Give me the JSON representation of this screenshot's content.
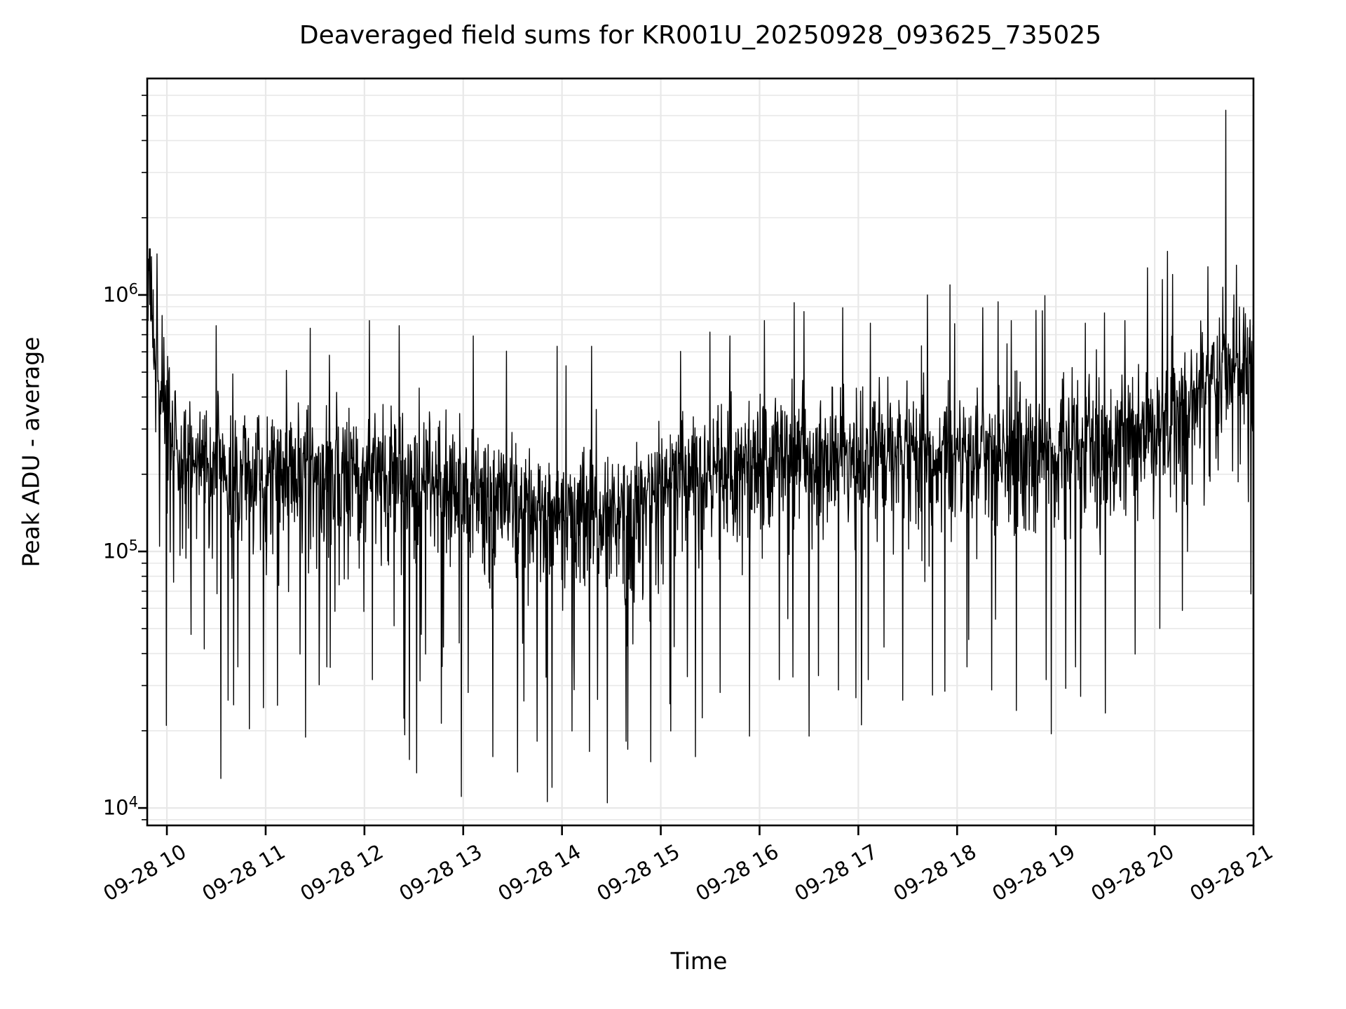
{
  "title": "Deaveraged field sums for KR001U_20250928_093625_735025",
  "chart_data": {
    "type": "line",
    "title": "Deaveraged field sums for KR001U_20250928_093625_735025",
    "xlabel": "Time",
    "ylabel": "Peak ADU - average",
    "legend": null,
    "grid": "both-major-and-minor",
    "background_color": "#ffffff",
    "grid_color": "#e8e8e8",
    "spine_color": "#000000",
    "x_axis": {
      "xlim_hours": [
        9.801,
        21.0
      ],
      "tick_hours": [
        10,
        11,
        12,
        13,
        14,
        15,
        16,
        17,
        18,
        19,
        20,
        21
      ],
      "tick_labels": [
        "09-28 10",
        "09-28 11",
        "09-28 12",
        "09-28 13",
        "09-28 14",
        "09-28 15",
        "09-28 16",
        "09-28 17",
        "09-28 18",
        "09-28 19",
        "09-28 20",
        "09-28 21"
      ],
      "tick_label_rotation_deg": 30
    },
    "y_axis": {
      "scale": "log",
      "ylim": [
        8550,
        6980000
      ],
      "tick_base": "10",
      "ticks": [
        {
          "value": 10000,
          "exponent": "4"
        },
        {
          "value": 100000,
          "exponent": "5"
        },
        {
          "value": 1000000,
          "exponent": "6"
        }
      ],
      "minor_tick_mantissas": [
        2,
        3,
        4,
        5,
        6,
        7,
        8,
        9
      ]
    },
    "series": [
      {
        "name": "deaveraged-field-sums",
        "color": "#000000",
        "line_width": 1.4,
        "n_points": 2600,
        "seed": 20250928,
        "noise_sigma_log10": 0.11,
        "down_spike_prob": 0.045,
        "down_spike_depth_log10": [
          0.22,
          1.2
        ],
        "mid_dip_prob": 0.16,
        "mid_dip_depth_log10": [
          0.1,
          0.32
        ],
        "up_spike_prob": 0.032,
        "up_spike_height_log10": [
          0.12,
          0.55
        ],
        "clamp_log10": [
          4.01,
          6.18
        ],
        "baseline_log10": [
          [
            9.8,
            5.92
          ],
          [
            9.84,
            6.0
          ],
          [
            9.88,
            5.78
          ],
          [
            9.95,
            5.62
          ],
          [
            10.05,
            5.46
          ],
          [
            10.2,
            5.38
          ],
          [
            10.5,
            5.34
          ],
          [
            11.0,
            5.33
          ],
          [
            12.0,
            5.33
          ],
          [
            12.8,
            5.3
          ],
          [
            13.3,
            5.24
          ],
          [
            13.8,
            5.21
          ],
          [
            14.3,
            5.19
          ],
          [
            14.7,
            5.2
          ],
          [
            15.0,
            5.28
          ],
          [
            15.5,
            5.33
          ],
          [
            16.0,
            5.38
          ],
          [
            16.5,
            5.41
          ],
          [
            17.5,
            5.42
          ],
          [
            18.5,
            5.42
          ],
          [
            19.2,
            5.43
          ],
          [
            19.8,
            5.46
          ],
          [
            20.1,
            5.52
          ],
          [
            20.35,
            5.62
          ],
          [
            20.6,
            5.7
          ],
          [
            20.8,
            5.74
          ],
          [
            21.0,
            5.76
          ]
        ],
        "peak_events_hour_log10": [
          [
            9.815,
            6.14
          ],
          [
            9.9,
            6.16
          ],
          [
            9.86,
            6.02
          ],
          [
            9.95,
            5.92
          ],
          [
            10.5,
            5.88
          ],
          [
            11.45,
            5.87
          ],
          [
            12.05,
            5.9
          ],
          [
            12.35,
            5.88
          ],
          [
            13.1,
            5.84
          ],
          [
            13.95,
            5.8
          ],
          [
            14.3,
            5.8
          ],
          [
            15.2,
            5.78
          ],
          [
            15.7,
            5.84
          ],
          [
            16.05,
            5.9
          ],
          [
            16.35,
            5.97
          ],
          [
            16.84,
            5.95
          ],
          [
            17.12,
            5.89
          ],
          [
            17.7,
            6.0
          ],
          [
            18.26,
            5.95
          ],
          [
            18.55,
            5.9
          ],
          [
            18.8,
            5.94
          ],
          [
            19.3,
            5.89
          ],
          [
            19.7,
            5.9
          ],
          [
            20.08,
            6.06
          ],
          [
            20.13,
            6.17
          ],
          [
            20.18,
            6.08
          ],
          [
            20.54,
            6.11
          ],
          [
            20.72,
            6.72
          ],
          [
            20.8,
            6.0
          ],
          [
            20.9,
            5.95
          ]
        ],
        "drop_events_hour_log10": [
          [
            9.925,
            5.02
          ],
          [
            10.07,
            4.88
          ],
          [
            10.3,
            5.05
          ],
          [
            10.38,
            4.62
          ],
          [
            10.62,
            4.42
          ],
          [
            10.72,
            4.55
          ],
          [
            11.12,
            4.4
          ],
          [
            11.35,
            4.6
          ],
          [
            11.62,
            4.55
          ],
          [
            12.08,
            4.5
          ],
          [
            12.4,
            4.35
          ],
          [
            12.62,
            4.6
          ],
          [
            12.78,
            4.33
          ],
          [
            13.05,
            4.45
          ],
          [
            13.3,
            4.2
          ],
          [
            13.55,
            4.14
          ],
          [
            13.75,
            4.26
          ],
          [
            13.9,
            4.08
          ],
          [
            14.1,
            4.3
          ],
          [
            14.28,
            4.22
          ],
          [
            14.46,
            4.02
          ],
          [
            14.65,
            4.26
          ],
          [
            14.9,
            4.18
          ],
          [
            15.1,
            4.3
          ],
          [
            15.35,
            4.2
          ],
          [
            15.6,
            4.45
          ],
          [
            15.9,
            4.28
          ],
          [
            16.2,
            4.5
          ],
          [
            16.5,
            4.28
          ],
          [
            16.8,
            4.46
          ],
          [
            17.1,
            4.5
          ],
          [
            17.45,
            4.42
          ],
          [
            17.75,
            4.44
          ],
          [
            18.1,
            4.55
          ],
          [
            18.35,
            4.46
          ],
          [
            18.6,
            4.38
          ],
          [
            18.9,
            4.5
          ],
          [
            19.2,
            4.55
          ],
          [
            19.5,
            4.37
          ],
          [
            19.8,
            4.6
          ],
          [
            20.05,
            4.7
          ],
          [
            20.33,
            5.0
          ],
          [
            20.5,
            5.18
          ]
        ]
      }
    ]
  }
}
